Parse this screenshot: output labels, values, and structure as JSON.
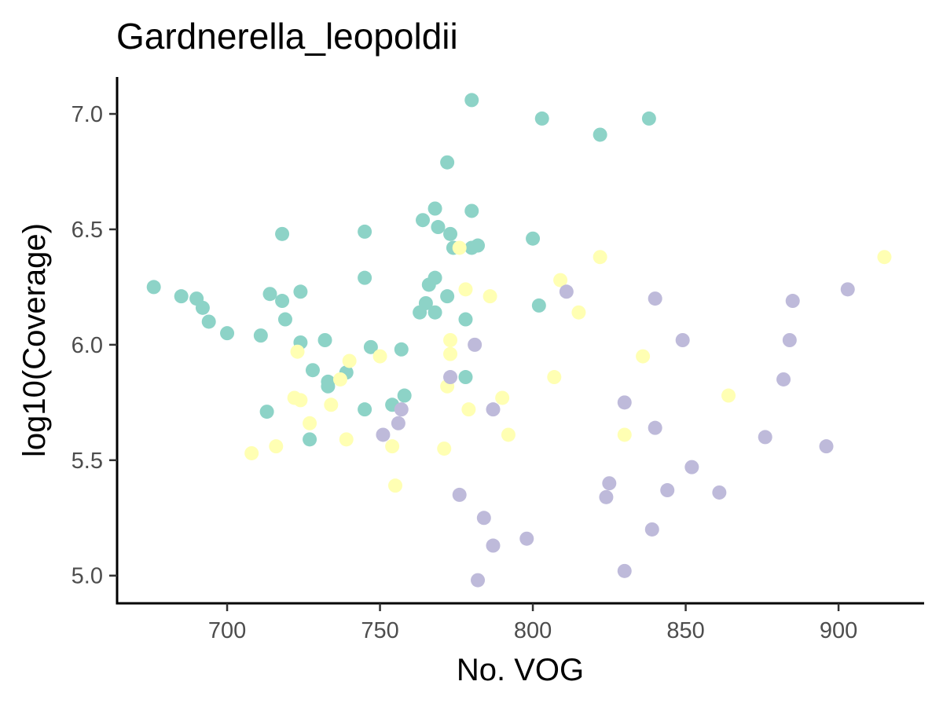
{
  "chart_data": {
    "type": "scatter",
    "title": "Gardnerella_leopoldii",
    "xlabel": "No. VOG",
    "ylabel": "log10(Coverage)",
    "xlim": [
      664,
      928
    ],
    "ylim": [
      4.88,
      7.16
    ],
    "x_ticks": [
      700,
      750,
      800,
      850,
      900
    ],
    "x_tick_labels": [
      "700",
      "750",
      "800",
      "850",
      "900"
    ],
    "y_ticks": [
      5.0,
      5.5,
      6.0,
      6.5,
      7.0
    ],
    "y_tick_labels": [
      "5.0",
      "5.5",
      "6.0",
      "6.5",
      "7.0"
    ],
    "grid": false,
    "legend": "none",
    "series": [
      {
        "color": "#8dd3c7",
        "points": [
          [
            676,
            6.25
          ],
          [
            685,
            6.21
          ],
          [
            690,
            6.2
          ],
          [
            692,
            6.16
          ],
          [
            694,
            6.1
          ],
          [
            700,
            6.05
          ],
          [
            711,
            6.04
          ],
          [
            713,
            5.71
          ],
          [
            714,
            6.22
          ],
          [
            718,
            6.19
          ],
          [
            718,
            6.48
          ],
          [
            719,
            6.11
          ],
          [
            724,
            6.23
          ],
          [
            724,
            6.01
          ],
          [
            727,
            5.59
          ],
          [
            728,
            5.89
          ],
          [
            732,
            6.02
          ],
          [
            733,
            5.84
          ],
          [
            733,
            5.82
          ],
          [
            739,
            5.88
          ],
          [
            745,
            6.49
          ],
          [
            745,
            6.29
          ],
          [
            745,
            5.72
          ],
          [
            747,
            5.99
          ],
          [
            754,
            5.74
          ],
          [
            757,
            5.98
          ],
          [
            758,
            5.78
          ],
          [
            763,
            6.14
          ],
          [
            764,
            6.54
          ],
          [
            765,
            6.18
          ],
          [
            766,
            6.26
          ],
          [
            768,
            6.59
          ],
          [
            768,
            6.29
          ],
          [
            768,
            6.14
          ],
          [
            769,
            6.51
          ],
          [
            772,
            6.79
          ],
          [
            772,
            6.21
          ],
          [
            773,
            6.48
          ],
          [
            774,
            6.42
          ],
          [
            778,
            6.11
          ],
          [
            778,
            5.86
          ],
          [
            780,
            7.06
          ],
          [
            780,
            6.58
          ],
          [
            780,
            6.42
          ],
          [
            782,
            6.43
          ],
          [
            800,
            6.46
          ],
          [
            802,
            6.17
          ],
          [
            803,
            6.98
          ],
          [
            822,
            6.91
          ],
          [
            838,
            6.98
          ]
        ]
      },
      {
        "color": "#ffffb3",
        "points": [
          [
            708,
            5.53
          ],
          [
            716,
            5.56
          ],
          [
            722,
            5.77
          ],
          [
            723,
            5.97
          ],
          [
            724,
            5.76
          ],
          [
            727,
            5.66
          ],
          [
            734,
            5.74
          ],
          [
            737,
            5.85
          ],
          [
            739,
            5.59
          ],
          [
            740,
            5.93
          ],
          [
            750,
            5.95
          ],
          [
            754,
            5.56
          ],
          [
            755,
            5.39
          ],
          [
            771,
            5.55
          ],
          [
            772,
            5.82
          ],
          [
            773,
            6.02
          ],
          [
            773,
            5.96
          ],
          [
            776,
            6.42
          ],
          [
            778,
            6.24
          ],
          [
            779,
            5.72
          ],
          [
            786,
            6.21
          ],
          [
            790,
            5.77
          ],
          [
            792,
            5.61
          ],
          [
            807,
            5.86
          ],
          [
            809,
            6.28
          ],
          [
            815,
            6.14
          ],
          [
            822,
            6.38
          ],
          [
            830,
            5.61
          ],
          [
            836,
            5.95
          ],
          [
            864,
            5.78
          ],
          [
            915,
            6.38
          ]
        ]
      },
      {
        "color": "#bebada",
        "points": [
          [
            751,
            5.61
          ],
          [
            756,
            5.66
          ],
          [
            757,
            5.72
          ],
          [
            773,
            5.86
          ],
          [
            776,
            5.35
          ],
          [
            781,
            6.0
          ],
          [
            782,
            4.98
          ],
          [
            784,
            5.25
          ],
          [
            787,
            5.72
          ],
          [
            787,
            5.13
          ],
          [
            798,
            5.16
          ],
          [
            811,
            6.23
          ],
          [
            824,
            5.34
          ],
          [
            825,
            5.4
          ],
          [
            830,
            5.75
          ],
          [
            830,
            5.02
          ],
          [
            839,
            5.2
          ],
          [
            840,
            6.2
          ],
          [
            840,
            5.64
          ],
          [
            844,
            5.37
          ],
          [
            849,
            6.02
          ],
          [
            852,
            5.47
          ],
          [
            861,
            5.36
          ],
          [
            876,
            5.6
          ],
          [
            882,
            5.85
          ],
          [
            884,
            6.02
          ],
          [
            885,
            6.19
          ],
          [
            896,
            5.56
          ],
          [
            903,
            6.24
          ]
        ]
      }
    ]
  }
}
